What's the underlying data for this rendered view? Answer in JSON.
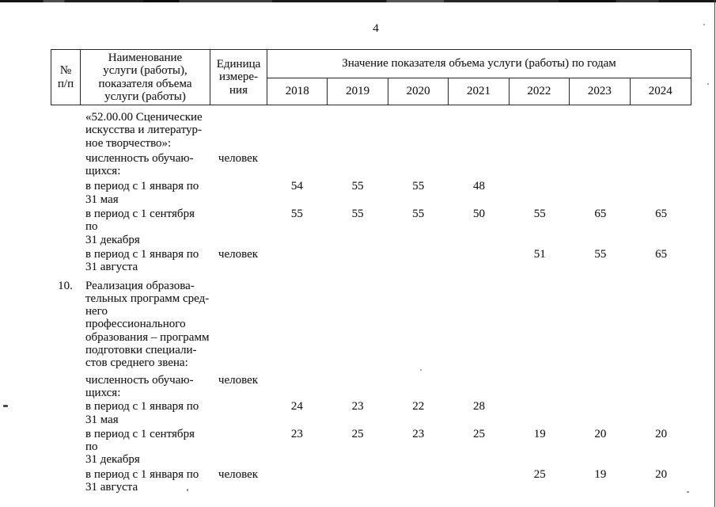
{
  "page": {
    "number": "4"
  },
  "table": {
    "header": {
      "col_num": [
        "№",
        "п/п"
      ],
      "col_name": [
        "Наименование",
        "услуги (работы),",
        "показателя объема",
        "услуги (работы)"
      ],
      "col_unit": [
        "Единица",
        "измере-",
        "ния"
      ],
      "years_group": "Значение показателя объема услуги (работы) по годам",
      "years": [
        "2018",
        "2019",
        "2020",
        "2021",
        "2022",
        "2023",
        "2024"
      ]
    },
    "rows": [
      {
        "num": "",
        "name": [
          "«52.00.00 Сценические",
          "искусства и литератур-",
          "ное творчество»:"
        ],
        "unit": "",
        "values": [
          "",
          "",
          "",
          "",
          "",
          "",
          ""
        ]
      },
      {
        "num": "",
        "name": [
          "численность обучаю-",
          "щихся:"
        ],
        "unit": "человек",
        "values": [
          "",
          "",
          "",
          "",
          "",
          "",
          ""
        ]
      },
      {
        "num": "",
        "name": [
          "в период с 1 января по",
          "31 мая"
        ],
        "unit": "",
        "values": [
          "54",
          "55",
          "55",
          "48",
          "",
          "",
          ""
        ]
      },
      {
        "num": "",
        "name": [
          "в период с 1 сентября по",
          "31 декабря"
        ],
        "unit": "",
        "values": [
          "55",
          "55",
          "55",
          "50",
          "55",
          "65",
          "65"
        ]
      },
      {
        "num": "",
        "name": [
          "в период с 1 января по",
          "31 августа"
        ],
        "unit": "человек",
        "values": [
          "",
          "",
          "",
          "",
          "51",
          "55",
          "65"
        ]
      },
      {
        "num": "10.",
        "name": [
          "Реализация образова-",
          "тельных программ сред-",
          "него профессионального",
          "образования – программ",
          "подготовки специали-",
          "стов среднего звена:"
        ],
        "unit": "",
        "values": [
          "",
          "",
          "",
          "",
          "",
          "",
          ""
        ]
      },
      {
        "num": "",
        "name": [
          "численность обучаю-",
          "щихся:"
        ],
        "unit": "человек",
        "values": [
          "",
          "",
          "",
          "",
          "",
          "",
          ""
        ]
      },
      {
        "num": "",
        "name": [
          "в период с 1 января по",
          "31 мая"
        ],
        "unit": "",
        "values": [
          "24",
          "23",
          "22",
          "28",
          "",
          "",
          ""
        ]
      },
      {
        "num": "",
        "name": [
          "в период с 1 сентября по",
          "31 декабря"
        ],
        "unit": "",
        "values": [
          "23",
          "25",
          "23",
          "25",
          "19",
          "20",
          "20"
        ]
      },
      {
        "num": "",
        "name": [
          "в период с 1 января по",
          "31 августа"
        ],
        "unit": "человек",
        "values": [
          "",
          "",
          "",
          "",
          "25",
          "19",
          "20"
        ]
      }
    ]
  }
}
